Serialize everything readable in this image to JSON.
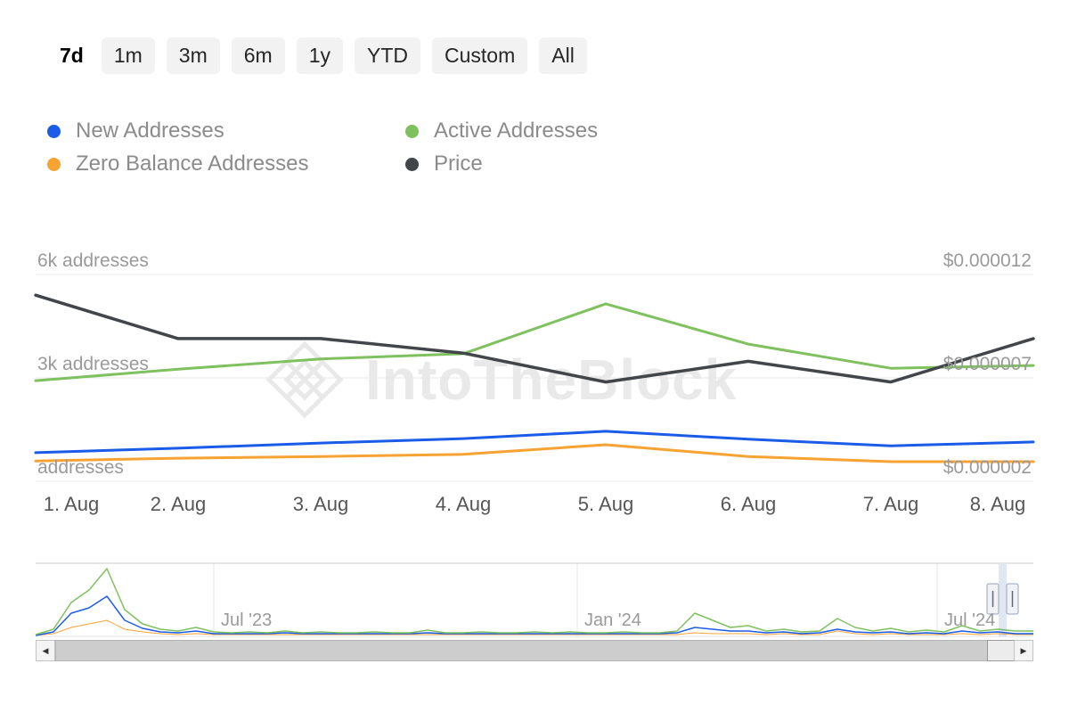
{
  "watermark": {
    "text": "IntoTheBlock"
  },
  "toolbar": {
    "ranges": [
      {
        "label": "7d",
        "active": true
      },
      {
        "label": "1m",
        "active": false
      },
      {
        "label": "3m",
        "active": false
      },
      {
        "label": "6m",
        "active": false
      },
      {
        "label": "1y",
        "active": false
      },
      {
        "label": "YTD",
        "active": false
      },
      {
        "label": "Custom",
        "active": false
      },
      {
        "label": "All",
        "active": false
      }
    ]
  },
  "legend": {
    "items": [
      {
        "label": "New Addresses",
        "color": "#1a5ce8"
      },
      {
        "label": "Active Addresses",
        "color": "#7fc15e"
      },
      {
        "label": "Zero Balance Addresses",
        "color": "#f7a334"
      },
      {
        "label": "Price",
        "color": "#42454a"
      }
    ]
  },
  "chart_data": {
    "type": "line",
    "x_labels": [
      "1. Aug",
      "2. Aug",
      "3. Aug",
      "4. Aug",
      "5. Aug",
      "6. Aug",
      "7. Aug",
      "8. Aug"
    ],
    "left_axis": {
      "unit": "addresses",
      "range": [
        0,
        6000
      ],
      "ticks": [
        {
          "value": 6000,
          "label": "6k addresses"
        },
        {
          "value": 3000,
          "label": "3k addresses"
        },
        {
          "value": 0,
          "label": "addresses"
        }
      ]
    },
    "right_axis": {
      "unit": "$",
      "range": [
        2e-06,
        1.2e-05
      ],
      "ticks": [
        {
          "value": 1.2e-05,
          "label": "$0.000012"
        },
        {
          "value": 7e-06,
          "label": "$0.000007"
        },
        {
          "value": 2e-06,
          "label": "$0.000002"
        }
      ]
    },
    "series": [
      {
        "name": "New Addresses",
        "color": "#1a5ce8",
        "axis": "left",
        "width": 3,
        "values": [
          830,
          960,
          1110,
          1240,
          1450,
          1220,
          1030,
          1140
        ]
      },
      {
        "name": "Zero Balance Addresses",
        "color": "#f7a334",
        "axis": "left",
        "width": 3,
        "values": [
          590,
          670,
          720,
          780,
          1060,
          720,
          570,
          570
        ]
      },
      {
        "name": "Active Addresses",
        "color": "#7fc15e",
        "axis": "left",
        "width": 3,
        "values": [
          2920,
          3250,
          3550,
          3700,
          5150,
          3980,
          3280,
          3360
        ]
      },
      {
        "name": "Price",
        "color": "#42454a",
        "axis": "right",
        "width": 3.5,
        "values": [
          1.1e-05,
          8.9e-06,
          8.9e-06,
          8.2e-06,
          6.8e-06,
          7.8e-06,
          6.8e-06,
          8.9e-06
        ]
      }
    ],
    "legend_position": "top",
    "grid": "horizontal"
  },
  "navigator": {
    "ticks": [
      {
        "label": "Jul '23",
        "x": 240
      },
      {
        "label": "Jan '24",
        "x": 648
      },
      {
        "label": "Jul '24",
        "x": 1052
      }
    ],
    "series": [
      {
        "name": "Zero Balance Addresses",
        "color": "#f7a334",
        "width": 1,
        "heights": [
          1,
          3,
          10,
          14,
          18,
          8,
          5,
          3,
          2,
          3,
          2,
          2,
          2,
          2,
          2,
          2,
          2,
          2,
          2,
          2,
          2,
          2,
          2,
          2,
          2,
          2,
          2,
          2,
          2,
          2,
          2,
          2,
          2,
          2,
          2,
          2,
          2,
          4,
          3,
          3,
          3,
          2,
          3,
          2,
          2,
          6,
          3,
          2,
          3,
          2,
          2,
          2,
          3,
          2,
          3,
          2,
          2
        ]
      },
      {
        "name": "New Addresses",
        "color": "#1a5ce8",
        "width": 1.5,
        "heights": [
          1,
          5,
          26,
          32,
          45,
          18,
          9,
          5,
          4,
          6,
          3,
          3,
          3,
          3,
          4,
          3,
          3,
          3,
          3,
          3,
          3,
          3,
          4,
          3,
          3,
          3,
          3,
          3,
          3,
          3,
          3,
          3,
          3,
          3,
          3,
          3,
          4,
          10,
          8,
          6,
          6,
          4,
          5,
          3,
          4,
          8,
          5,
          4,
          5,
          3,
          4,
          3,
          6,
          4,
          5,
          3,
          3
        ]
      },
      {
        "name": "Active Addresses",
        "color": "#7fc15e",
        "width": 1.5,
        "heights": [
          2,
          8,
          38,
          52,
          76,
          30,
          14,
          8,
          6,
          10,
          5,
          4,
          5,
          4,
          6,
          4,
          5,
          4,
          4,
          5,
          4,
          4,
          7,
          4,
          4,
          5,
          4,
          4,
          5,
          4,
          5,
          4,
          4,
          5,
          4,
          4,
          6,
          26,
          18,
          10,
          12,
          6,
          8,
          5,
          6,
          20,
          10,
          6,
          9,
          5,
          7,
          5,
          12,
          6,
          8,
          6,
          6
        ]
      }
    ]
  }
}
